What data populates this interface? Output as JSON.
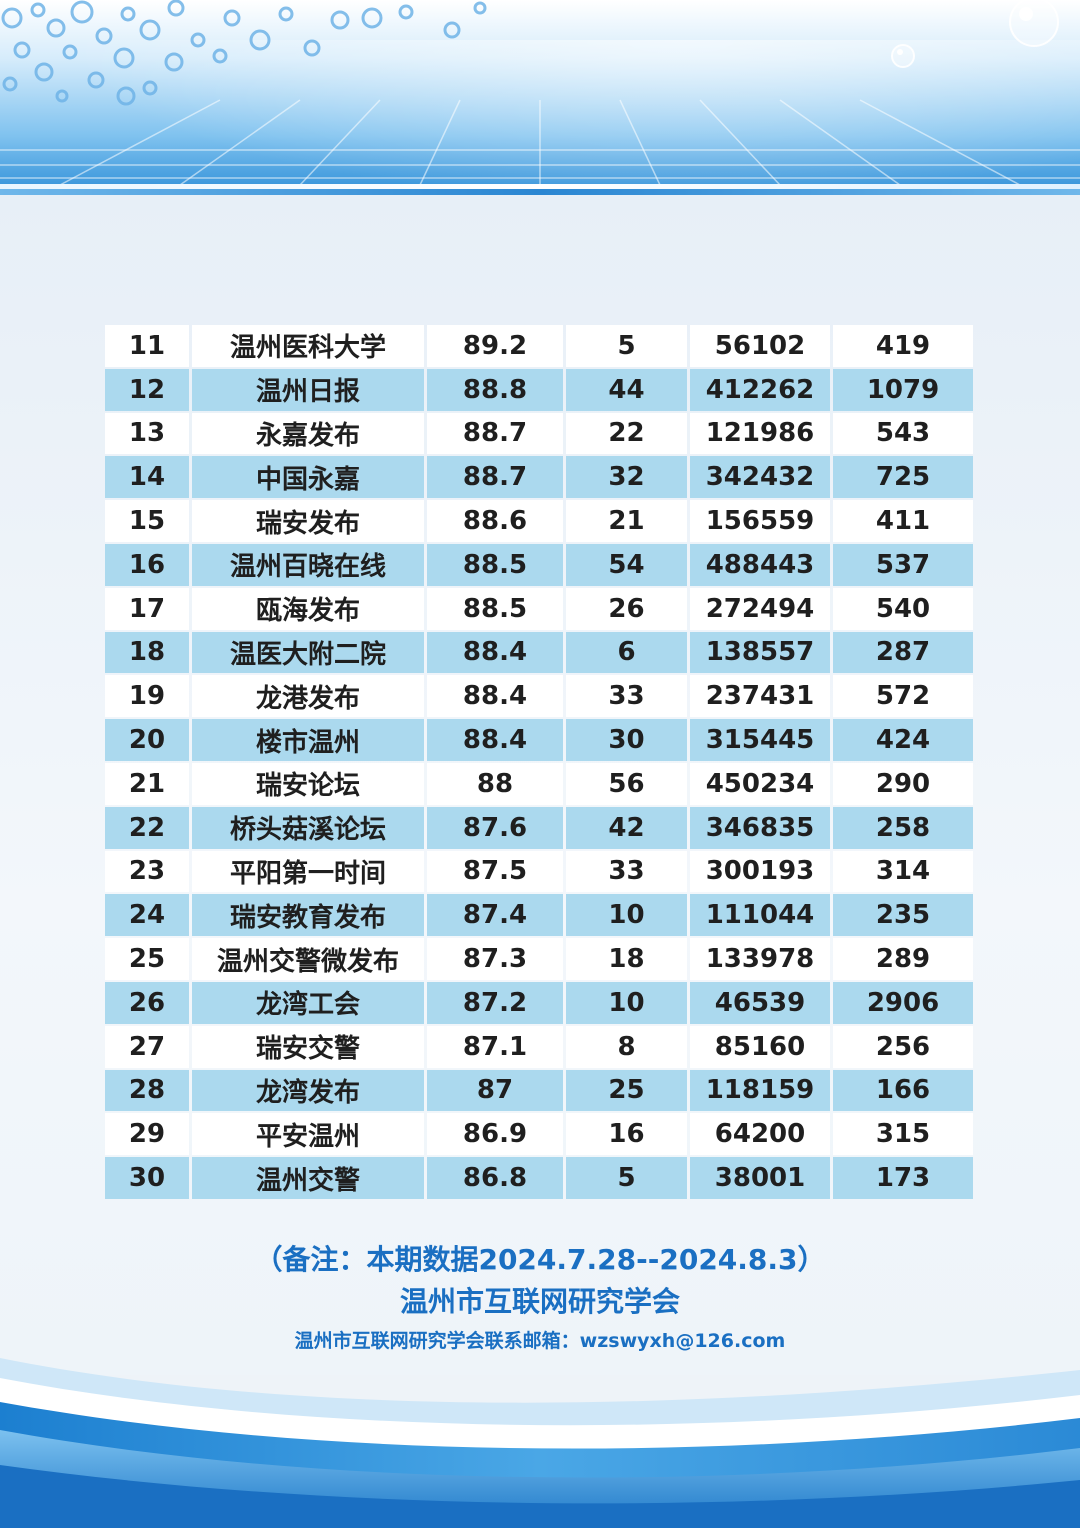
{
  "colors": {
    "accent_blue": "#1a6fc2",
    "row_alt": "#abd9ee",
    "row_plain": "#ffffff"
  },
  "table": {
    "rows": [
      [
        "11",
        "温州医科大学",
        "89.2",
        "5",
        "56102",
        "419"
      ],
      [
        "12",
        "温州日报",
        "88.8",
        "44",
        "412262",
        "1079"
      ],
      [
        "13",
        "永嘉发布",
        "88.7",
        "22",
        "121986",
        "543"
      ],
      [
        "14",
        "中国永嘉",
        "88.7",
        "32",
        "342432",
        "725"
      ],
      [
        "15",
        "瑞安发布",
        "88.6",
        "21",
        "156559",
        "411"
      ],
      [
        "16",
        "温州百晓在线",
        "88.5",
        "54",
        "488443",
        "537"
      ],
      [
        "17",
        "瓯海发布",
        "88.5",
        "26",
        "272494",
        "540"
      ],
      [
        "18",
        "温医大附二院",
        "88.4",
        "6",
        "138557",
        "287"
      ],
      [
        "19",
        "龙港发布",
        "88.4",
        "33",
        "237431",
        "572"
      ],
      [
        "20",
        "楼市温州",
        "88.4",
        "30",
        "315445",
        "424"
      ],
      [
        "21",
        "瑞安论坛",
        "88",
        "56",
        "450234",
        "290"
      ],
      [
        "22",
        "桥头菇溪论坛",
        "87.6",
        "42",
        "346835",
        "258"
      ],
      [
        "23",
        "平阳第一时间",
        "87.5",
        "33",
        "300193",
        "314"
      ],
      [
        "24",
        "瑞安教育发布",
        "87.4",
        "10",
        "111044",
        "235"
      ],
      [
        "25",
        "温州交警微发布",
        "87.3",
        "18",
        "133978",
        "289"
      ],
      [
        "26",
        "龙湾工会",
        "87.2",
        "10",
        "46539",
        "2906"
      ],
      [
        "27",
        "瑞安交警",
        "87.1",
        "8",
        "85160",
        "256"
      ],
      [
        "28",
        "龙湾发布",
        "87",
        "25",
        "118159",
        "166"
      ],
      [
        "29",
        "平安温州",
        "86.9",
        "16",
        "64200",
        "315"
      ],
      [
        "30",
        "温州交警",
        "86.8",
        "5",
        "38001",
        "173"
      ]
    ]
  },
  "notes": {
    "period": "（备注：本期数据2024.7.28--2024.8.3）",
    "org": "温州市互联网研究学会",
    "contact": "温州市互联网研究学会联系邮箱：wzswyxh@126.com"
  }
}
